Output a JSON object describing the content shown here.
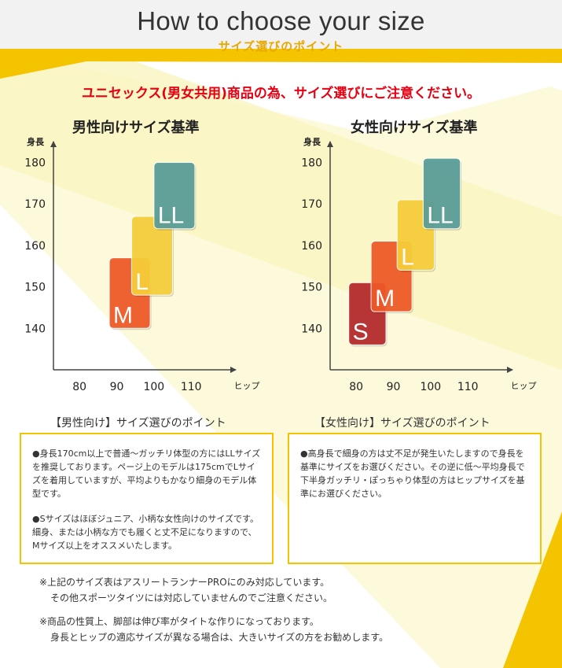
{
  "header": {
    "title": "How to choose your size",
    "subtitle": "サイズ選びのポイント"
  },
  "notice": "ユニセックス(男女共用)商品の為、サイズ選びにご注意ください。",
  "colors": {
    "accent": "#f5c400",
    "notice": "#e60012",
    "subtitle": "#e7a800"
  },
  "chart_data": [
    {
      "type": "scatter",
      "title": "男性向けサイズ基準",
      "ylabel": "身長",
      "xlabel": "ヒップ",
      "x_ticks": [
        80,
        90,
        100,
        110
      ],
      "y_ticks": [
        180,
        170,
        160,
        150,
        140
      ],
      "xlim": [
        73,
        122
      ],
      "ylim": [
        130,
        185
      ],
      "boxes": [
        {
          "label": "M",
          "hip": [
            88,
            99
          ],
          "height": [
            140,
            157
          ],
          "color": "#f05a28"
        },
        {
          "label": "L",
          "hip": [
            94,
            105
          ],
          "height": [
            148,
            167
          ],
          "color": "#f8cf3a"
        },
        {
          "label": "LL",
          "hip": [
            100,
            111
          ],
          "height": [
            164,
            180
          ],
          "color": "#5a9e99"
        }
      ]
    },
    {
      "type": "scatter",
      "title": "女性向けサイズ基準",
      "ylabel": "身長",
      "xlabel": "ヒップ",
      "x_ticks": [
        80,
        90,
        100,
        110
      ],
      "y_ticks": [
        180,
        170,
        160,
        150,
        140
      ],
      "xlim": [
        73,
        122
      ],
      "ylim": [
        130,
        185
      ],
      "boxes": [
        {
          "label": "S",
          "hip": [
            78,
            88
          ],
          "height": [
            136,
            151
          ],
          "color": "#b52a2a"
        },
        {
          "label": "M",
          "hip": [
            84,
            95
          ],
          "height": [
            144,
            161
          ],
          "color": "#f05a28"
        },
        {
          "label": "L",
          "hip": [
            91,
            101
          ],
          "height": [
            154,
            171
          ],
          "color": "#f8cf3a"
        },
        {
          "label": "LL",
          "hip": [
            98,
            108
          ],
          "height": [
            164,
            181
          ],
          "color": "#5a9e99"
        }
      ]
    }
  ],
  "tips": {
    "men": {
      "title": "【男性向け】サイズ選びのポイント",
      "p1": "●身長170cm以上で普通～ガッチリ体型の方にはLLサイズを推奨しております。ページ上のモデルは175cmでLサイズを着用していますが、平均よりもかなり細身のモデル体型です。",
      "p2": "●Sサイズはほぼジュニア、小柄な女性向けのサイズです。細身、または小柄な方でも履くと丈不足になりますので、Mサイズ以上をオススメいたします。"
    },
    "women": {
      "title": "【女性向け】サイズ選びのポイント",
      "p1": "●高身長で細身の方は丈不足が発生いたしますので身長を基準にサイズをお選びください。その逆に低～平均身長で下半身ガッチリ・ぽっちゃり体型の方はヒップサイズを基準にお選びください。"
    }
  },
  "footnotes": {
    "n1_line1": "※上記のサイズ表はアスリートランナーPROにのみ対応しています。",
    "n1_line2": "その他スポーツタイツには対応していませんのでご注意ください。",
    "n2_line1": "※商品の性質上、脚部は伸び率がタイトな作りになっております。",
    "n2_line2": "身長とヒップの適応サイズが異なる場合は、大きいサイズの方をお勧めします。"
  }
}
